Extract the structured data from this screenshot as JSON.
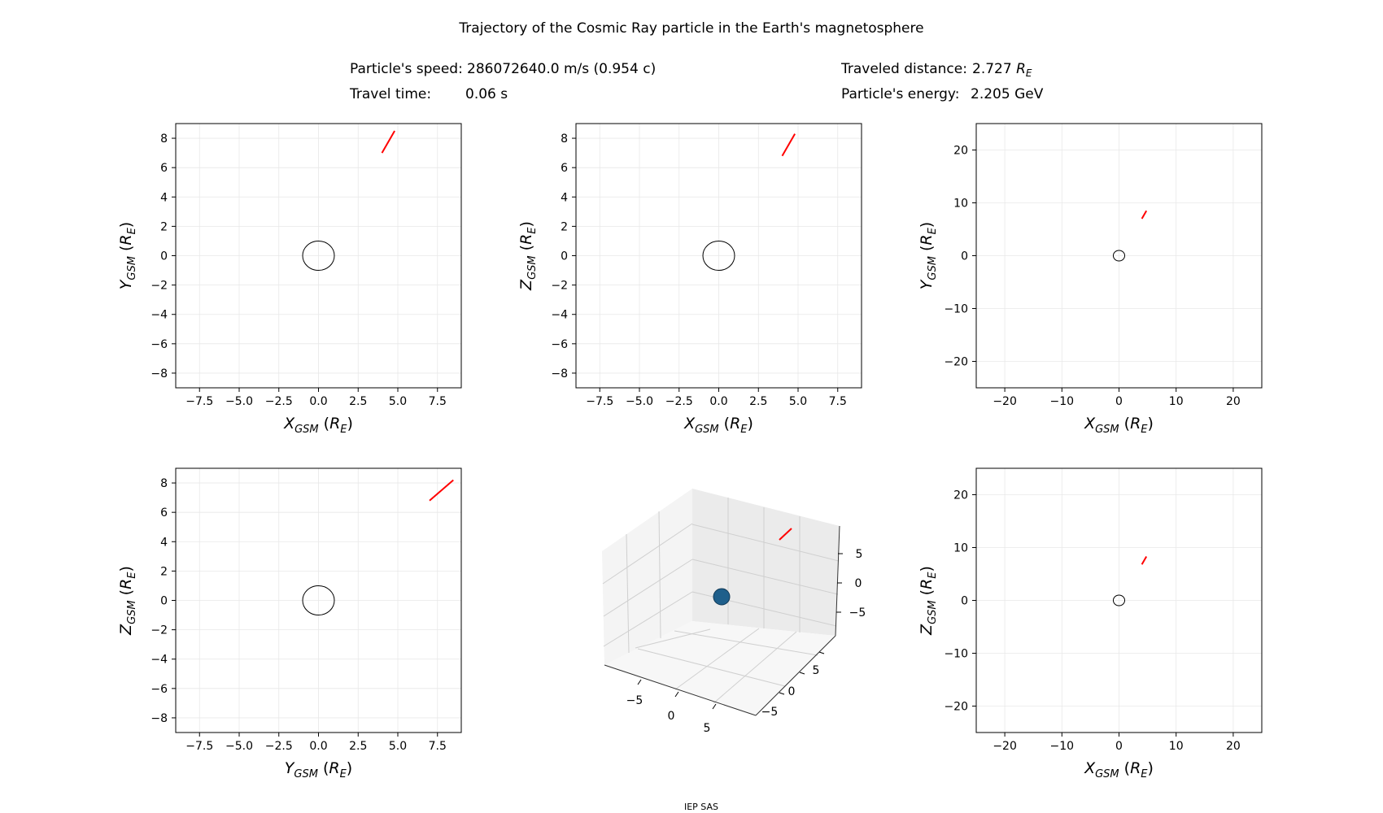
{
  "title": "Trajectory of the Cosmic Ray particle in the Earth's magnetosphere",
  "info": {
    "speed_label": "Particle's speed:",
    "speed_value": "286072640.0 m/s (0.954 c)",
    "time_label": "Travel time:",
    "time_value": "0.06 s",
    "distance_label": "Traveled distance:",
    "distance_value": "2.727",
    "distance_unit": "R",
    "distance_unit_sub": "E",
    "energy_label": "Particle's energy:",
    "energy_value": "2.205 GeV"
  },
  "footer": "IEP SAS",
  "colors": {
    "trajectory": "#ff0000",
    "earth_outline": "#000000",
    "grid": "#e8e8e8",
    "earth_sphere": "#1f5f8b"
  },
  "chart_data": [
    {
      "id": "xy-zoom",
      "type": "line",
      "xlabel": {
        "var": "X",
        "sub": "GSM",
        "unit": "R",
        "unit_sub": "E"
      },
      "ylabel": {
        "var": "Y",
        "sub": "GSM",
        "unit": "R",
        "unit_sub": "E"
      },
      "xlim": [
        -9,
        9
      ],
      "ylim": [
        -9,
        9
      ],
      "xticks": [
        -7.5,
        -5.0,
        -2.5,
        0.0,
        2.5,
        5.0,
        7.5
      ],
      "xtick_labels": [
        "−7.5",
        "−5.0",
        "−2.5",
        "0.0",
        "2.5",
        "5.0",
        "7.5"
      ],
      "yticks": [
        -8,
        -6,
        -4,
        -2,
        0,
        2,
        4,
        6,
        8
      ],
      "ytick_labels": [
        "−8",
        "−6",
        "−4",
        "−2",
        "0",
        "2",
        "4",
        "6",
        "8"
      ],
      "earth_radius": 1,
      "series": [
        {
          "name": "trajectory",
          "x": [
            4.0,
            4.8
          ],
          "y": [
            7.0,
            8.5
          ]
        }
      ]
    },
    {
      "id": "xz-zoom",
      "type": "line",
      "xlabel": {
        "var": "X",
        "sub": "GSM",
        "unit": "R",
        "unit_sub": "E"
      },
      "ylabel": {
        "var": "Z",
        "sub": "GSM",
        "unit": "R",
        "unit_sub": "E"
      },
      "xlim": [
        -9,
        9
      ],
      "ylim": [
        -9,
        9
      ],
      "xticks": [
        -7.5,
        -5.0,
        -2.5,
        0.0,
        2.5,
        5.0,
        7.5
      ],
      "xtick_labels": [
        "−7.5",
        "−5.0",
        "−2.5",
        "0.0",
        "2.5",
        "5.0",
        "7.5"
      ],
      "yticks": [
        -8,
        -6,
        -4,
        -2,
        0,
        2,
        4,
        6,
        8
      ],
      "ytick_labels": [
        "−8",
        "−6",
        "−4",
        "−2",
        "0",
        "2",
        "4",
        "6",
        "8"
      ],
      "earth_radius": 1,
      "series": [
        {
          "name": "trajectory",
          "x": [
            4.0,
            4.8
          ],
          "y": [
            6.8,
            8.3
          ]
        }
      ]
    },
    {
      "id": "xy-wide",
      "type": "line",
      "xlabel": {
        "var": "X",
        "sub": "GSM",
        "unit": "R",
        "unit_sub": "E"
      },
      "ylabel": {
        "var": "Y",
        "sub": "GSM",
        "unit": "R",
        "unit_sub": "E"
      },
      "xlim": [
        -25,
        25
      ],
      "ylim": [
        -25,
        25
      ],
      "xticks": [
        -20,
        -10,
        0,
        10,
        20
      ],
      "xtick_labels": [
        "−20",
        "−10",
        "0",
        "10",
        "20"
      ],
      "yticks": [
        -20,
        -10,
        0,
        10,
        20
      ],
      "ytick_labels": [
        "−20",
        "−10",
        "0",
        "10",
        "20"
      ],
      "earth_radius": 1,
      "series": [
        {
          "name": "trajectory",
          "x": [
            4.0,
            4.8
          ],
          "y": [
            7.0,
            8.5
          ]
        }
      ]
    },
    {
      "id": "yz-zoom",
      "type": "line",
      "xlabel": {
        "var": "Y",
        "sub": "GSM",
        "unit": "R",
        "unit_sub": "E"
      },
      "ylabel": {
        "var": "Z",
        "sub": "GSM",
        "unit": "R",
        "unit_sub": "E"
      },
      "xlim": [
        -9,
        9
      ],
      "ylim": [
        -9,
        9
      ],
      "xticks": [
        -7.5,
        -5.0,
        -2.5,
        0.0,
        2.5,
        5.0,
        7.5
      ],
      "xtick_labels": [
        "−7.5",
        "−5.0",
        "−2.5",
        "0.0",
        "2.5",
        "5.0",
        "7.5"
      ],
      "yticks": [
        -8,
        -6,
        -4,
        -2,
        0,
        2,
        4,
        6,
        8
      ],
      "ytick_labels": [
        "−8",
        "−6",
        "−4",
        "−2",
        "0",
        "2",
        "4",
        "6",
        "8"
      ],
      "earth_radius": 1,
      "series": [
        {
          "name": "trajectory",
          "x": [
            7.0,
            8.5
          ],
          "y": [
            6.8,
            8.2
          ]
        }
      ]
    },
    {
      "id": "3d",
      "type": "line3d",
      "xlim": [
        -9,
        9
      ],
      "ylim": [
        -9,
        9
      ],
      "zlim": [
        -9,
        9
      ],
      "xtick_labels": [
        "−5",
        "0",
        "5"
      ],
      "ytick_labels": [
        "−5",
        "0",
        "5"
      ],
      "ztick_labels": [
        "5",
        "0",
        "−5"
      ],
      "series": [
        {
          "name": "trajectory",
          "x": [
            4.0,
            4.8
          ],
          "y": [
            7.0,
            8.5
          ],
          "z": [
            6.8,
            8.2
          ]
        }
      ]
    },
    {
      "id": "xz-wide",
      "type": "line",
      "xlabel": {
        "var": "X",
        "sub": "GSM",
        "unit": "R",
        "unit_sub": "E"
      },
      "ylabel": {
        "var": "Z",
        "sub": "GSM",
        "unit": "R",
        "unit_sub": "E"
      },
      "xlim": [
        -25,
        25
      ],
      "ylim": [
        -25,
        25
      ],
      "xticks": [
        -20,
        -10,
        0,
        10,
        20
      ],
      "xtick_labels": [
        "−20",
        "−10",
        "0",
        "10",
        "20"
      ],
      "yticks": [
        -20,
        -10,
        0,
        10,
        20
      ],
      "ytick_labels": [
        "−20",
        "−10",
        "0",
        "10",
        "20"
      ],
      "earth_radius": 1,
      "series": [
        {
          "name": "trajectory",
          "x": [
            4.0,
            4.8
          ],
          "y": [
            6.8,
            8.3
          ]
        }
      ]
    }
  ]
}
